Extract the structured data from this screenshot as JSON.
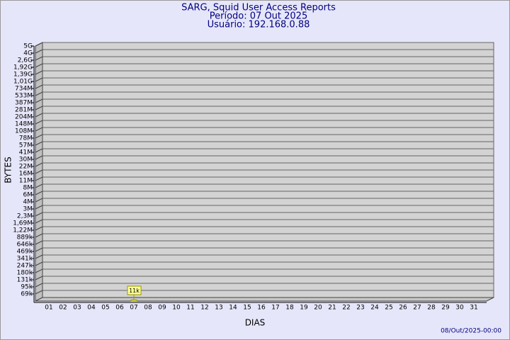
{
  "chart_data": {
    "type": "bar",
    "title": "SARG, Squid User Access Reports",
    "subtitle": [
      "Período: 07 Out 2025",
      "Usuário: 192.168.0.88"
    ],
    "xlabel": "DIAS",
    "ylabel": "BYTES",
    "timestamp": "08/Out/2025-00:00",
    "categories": [
      "01",
      "02",
      "03",
      "04",
      "05",
      "06",
      "07",
      "08",
      "09",
      "10",
      "11",
      "12",
      "13",
      "14",
      "15",
      "16",
      "17",
      "18",
      "19",
      "20",
      "21",
      "22",
      "23",
      "24",
      "25",
      "26",
      "27",
      "28",
      "29",
      "30",
      "31"
    ],
    "values": [
      null,
      null,
      null,
      null,
      null,
      null,
      11000,
      null,
      null,
      null,
      null,
      null,
      null,
      null,
      null,
      null,
      null,
      null,
      null,
      null,
      null,
      null,
      null,
      null,
      null,
      null,
      null,
      null,
      null,
      null,
      null
    ],
    "value_labels": [
      null,
      null,
      null,
      null,
      null,
      null,
      "11k",
      null,
      null,
      null,
      null,
      null,
      null,
      null,
      null,
      null,
      null,
      null,
      null,
      null,
      null,
      null,
      null,
      null,
      null,
      null,
      null,
      null,
      null,
      null,
      null
    ],
    "color": "#ffff99",
    "ylim": [
      0,
      5000000000
    ],
    "yticks": [
      {
        "value": 5000000000,
        "label": "5G"
      },
      {
        "value": 4000000000,
        "label": "4G"
      },
      {
        "value": 2600000000,
        "label": "2,6G"
      },
      {
        "value": 1920000000,
        "label": "1,92G"
      },
      {
        "value": 1390000000,
        "label": "1,39G"
      },
      {
        "value": 1010000000,
        "label": "1,01G"
      },
      {
        "value": 734000000,
        "label": "734M"
      },
      {
        "value": 533000000,
        "label": "533M"
      },
      {
        "value": 387000000,
        "label": "387M"
      },
      {
        "value": 281000000,
        "label": "281M"
      },
      {
        "value": 204000000,
        "label": "204M"
      },
      {
        "value": 148000000,
        "label": "148M"
      },
      {
        "value": 108000000,
        "label": "108M"
      },
      {
        "value": 78000000,
        "label": "78M"
      },
      {
        "value": 57000000,
        "label": "57M"
      },
      {
        "value": 41000000,
        "label": "41M"
      },
      {
        "value": 30000000,
        "label": "30M"
      },
      {
        "value": 22000000,
        "label": "22M"
      },
      {
        "value": 16000000,
        "label": "16M"
      },
      {
        "value": 11000000,
        "label": "11M"
      },
      {
        "value": 8000000,
        "label": "8M"
      },
      {
        "value": 6000000,
        "label": "6M"
      },
      {
        "value": 4000000,
        "label": "4M"
      },
      {
        "value": 3000000,
        "label": "3M"
      },
      {
        "value": 2300000,
        "label": "2,3M"
      },
      {
        "value": 1690000,
        "label": "1,69M"
      },
      {
        "value": 1220000,
        "label": "1,22M"
      },
      {
        "value": 889000,
        "label": "889k"
      },
      {
        "value": 646000,
        "label": "646k"
      },
      {
        "value": 469000,
        "label": "469k"
      },
      {
        "value": 341000,
        "label": "341k"
      },
      {
        "value": 247000,
        "label": "247k"
      },
      {
        "value": 180000,
        "label": "180k"
      },
      {
        "value": 131000,
        "label": "131k"
      },
      {
        "value": 95000,
        "label": "95k"
      },
      {
        "value": 69000,
        "label": "69k"
      }
    ],
    "grid": true
  }
}
